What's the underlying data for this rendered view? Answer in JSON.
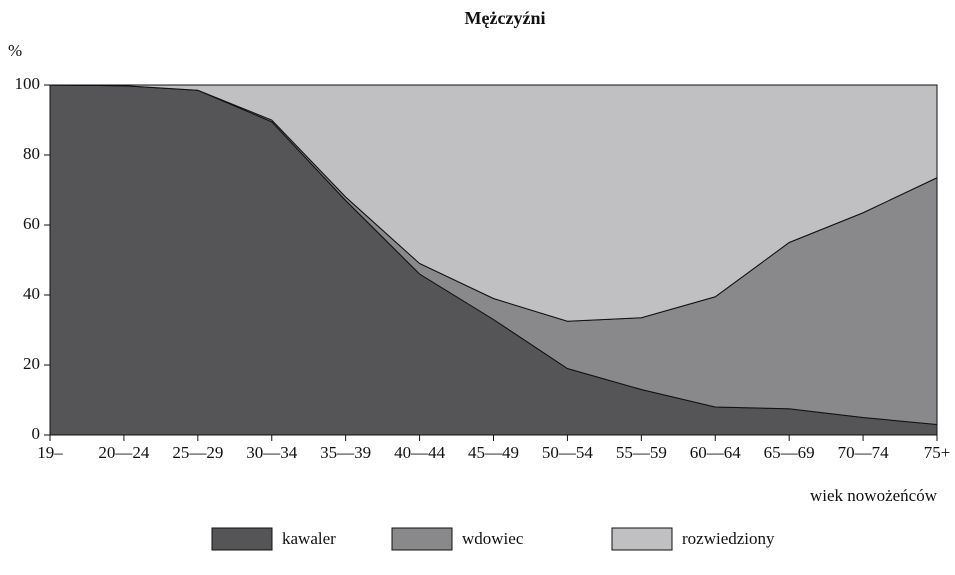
{
  "chart_data": {
    "type": "stacked_area",
    "title": "Mężczyźni",
    "y_label": "%",
    "x_label": "wiek nowożeńców",
    "categories": [
      "19–",
      "20—24",
      "25—29",
      "30—34",
      "35—39",
      "40—44",
      "45—49",
      "50—54",
      "55—59",
      "60—64",
      "65—69",
      "70—74",
      "75+"
    ],
    "series": [
      {
        "name": "kawaler",
        "color": "#555557",
        "values": [
          100,
          99.8,
          98.5,
          89.5,
          67,
          46,
          33,
          19,
          13,
          8,
          7.5,
          5,
          3
        ]
      },
      {
        "name": "wdowiec",
        "color": "#89898c",
        "values": [
          0,
          0,
          0,
          0.5,
          1,
          3,
          6,
          13.5,
          20.5,
          31.5,
          47.5,
          58.5,
          70.5
        ]
      },
      {
        "name": "rozwiedziony",
        "color": "#c0c0c3",
        "values": [
          0,
          0.2,
          1.5,
          10,
          32,
          51,
          61,
          67.5,
          66.5,
          60.5,
          45,
          36.5,
          26.5
        ]
      }
    ],
    "ylim": [
      0,
      100
    ],
    "yticks": [
      0,
      20,
      40,
      60,
      80,
      100
    ],
    "legend": "bottom"
  }
}
